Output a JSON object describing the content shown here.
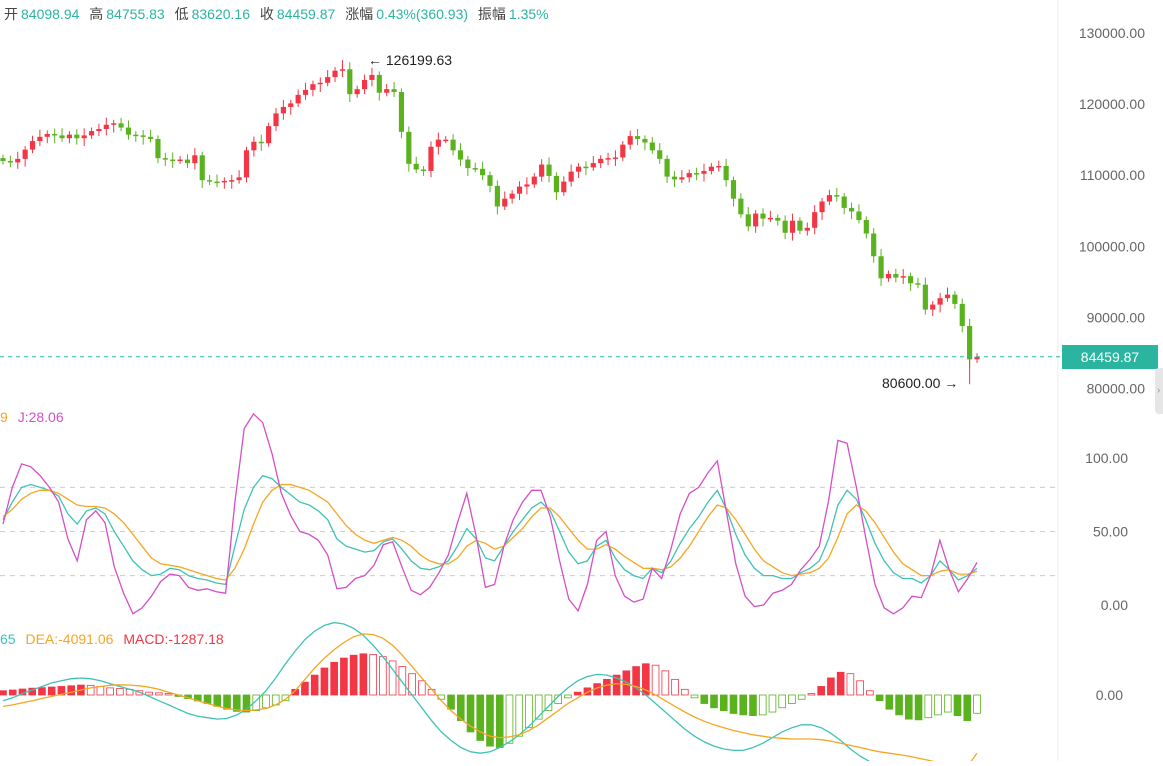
{
  "ohlc_header": {
    "open_label": "开",
    "open": "84098.94",
    "high_label": "高",
    "high": "84755.83",
    "low_label": "低",
    "low": "83620.16",
    "close_label": "收",
    "close": "84459.87",
    "change_label": "涨幅",
    "change": "0.43%(360.93)",
    "amplitude_label": "振幅",
    "amplitude": "1.35%"
  },
  "current_price_tag": "84459.87",
  "annotations": {
    "high_marker": "126199.63",
    "low_marker": "80600.00"
  },
  "kdj_legend": {
    "d_fragment": "9",
    "j_text": "J:28.06"
  },
  "macd_legend": {
    "dif_fragment": "65",
    "dea_text": "DEA:-4091.06",
    "macd_text": "MACD:-1287.18"
  },
  "colors": {
    "up": "#f23645",
    "down": "#5ab21e",
    "k_line": "#3fc2b4",
    "d_line": "#f5a623",
    "j_line": "#d44fc6",
    "price_tag": "#2bb5a0",
    "axis_text": "#666666"
  },
  "chart_data": [
    {
      "type": "candlestick",
      "title": "",
      "ylim": [
        77000,
        133000
      ],
      "y_ticks": [
        "130000.00",
        "120000.00",
        "110000.00",
        "100000.00",
        "90000.00",
        "80000.00"
      ],
      "y_tick_values": [
        130000,
        120000,
        110000,
        100000,
        90000,
        80000
      ],
      "current_price": 84459.87,
      "close_series": [
        112000,
        111800,
        112300,
        113600,
        114800,
        115400,
        115800,
        115600,
        115200,
        115700,
        115200,
        115600,
        116200,
        116500,
        117100,
        117300,
        116700,
        115700,
        115600,
        115400,
        115100,
        112400,
        112200,
        112100,
        112200,
        111700,
        112800,
        109300,
        109100,
        109000,
        109200,
        109300,
        109700,
        113500,
        114700,
        114500,
        116900,
        118700,
        119600,
        120100,
        121300,
        122000,
        122800,
        123000,
        123800,
        124700,
        124900,
        121400,
        122100,
        123400,
        124100,
        121600,
        122100,
        121700,
        116100,
        111600,
        110800,
        110600,
        114000,
        115000,
        115000,
        113500,
        112200,
        111000,
        110900,
        110000,
        108500,
        105600,
        106700,
        107400,
        108400,
        108700,
        109800,
        111500,
        109900,
        107600,
        109100,
        110500,
        111200,
        111100,
        111700,
        112300,
        112400,
        112500,
        114300,
        115500,
        115100,
        114600,
        113500,
        112300,
        109800,
        109400,
        109700,
        110300,
        110200,
        110600,
        111200,
        111300,
        109300,
        106700,
        104500,
        102800,
        104600,
        103900,
        104000,
        103600,
        101900,
        103600,
        102200,
        102600,
        104800,
        106300,
        107200,
        107000,
        105400,
        104900,
        103700,
        101800,
        98600,
        95500,
        96100,
        95600,
        95800,
        94800,
        94600,
        91100,
        91800,
        92700,
        93200,
        91900,
        88800,
        84100,
        84460
      ],
      "high_marker": 126199.63,
      "low_marker": 80600.0
    },
    {
      "type": "line",
      "title": "",
      "ylim": [
        -8,
        128
      ],
      "y_ticks": [
        "100.00",
        "50.00",
        "0.00"
      ],
      "y_tick_values": [
        100,
        50,
        0
      ],
      "dashed_levels": [
        80,
        50,
        20
      ],
      "series": [
        {
          "name": "K",
          "values": [
            58,
            70,
            80,
            82,
            80,
            78,
            74,
            62,
            55,
            64,
            66,
            62,
            50,
            40,
            30,
            24,
            20,
            21,
            25,
            24,
            20,
            18,
            17,
            15,
            14,
            40,
            65,
            80,
            88,
            86,
            80,
            75,
            70,
            68,
            64,
            58,
            45,
            40,
            38,
            36,
            37,
            43,
            45,
            38,
            30,
            25,
            24,
            26,
            30,
            40,
            52,
            45,
            32,
            30,
            40,
            50,
            58,
            66,
            70,
            64,
            50,
            36,
            28,
            30,
            40,
            44,
            32,
            24,
            20,
            18,
            25,
            22,
            30,
            42,
            52,
            60,
            70,
            78,
            65,
            48,
            34,
            25,
            20,
            20,
            18,
            18,
            22,
            25,
            30,
            45,
            68,
            78,
            72,
            58,
            42,
            30,
            22,
            18,
            18,
            15,
            20,
            30,
            24,
            17,
            20,
            25
          ]
        },
        {
          "name": "D",
          "values": [
            60,
            65,
            72,
            76,
            78,
            78,
            76,
            72,
            68,
            67,
            67,
            66,
            62,
            56,
            48,
            40,
            32,
            28,
            27,
            26,
            24,
            22,
            20,
            18,
            17,
            25,
            38,
            55,
            70,
            78,
            82,
            82,
            80,
            78,
            74,
            70,
            62,
            54,
            48,
            44,
            42,
            44,
            46,
            44,
            40,
            34,
            30,
            28,
            28,
            32,
            40,
            44,
            42,
            38,
            40,
            46,
            52,
            60,
            66,
            66,
            60,
            52,
            44,
            38,
            38,
            41,
            38,
            33,
            29,
            25,
            25,
            24,
            26,
            32,
            40,
            50,
            60,
            68,
            66,
            58,
            48,
            38,
            30,
            26,
            22,
            20,
            21,
            22,
            25,
            32,
            46,
            62,
            68,
            64,
            56,
            46,
            36,
            28,
            24,
            20,
            20,
            23,
            24,
            21,
            21,
            23
          ]
        },
        {
          "name": "J",
          "values": [
            55,
            80,
            96,
            94,
            88,
            80,
            70,
            45,
            30,
            58,
            64,
            56,
            26,
            8,
            -6,
            -2,
            6,
            16,
            21,
            20,
            12,
            10,
            11,
            9,
            8,
            70,
            120,
            130,
            124,
            103,
            76,
            61,
            50,
            48,
            44,
            34,
            11,
            12,
            18,
            20,
            27,
            41,
            43,
            26,
            10,
            7,
            12,
            22,
            34,
            56,
            76,
            47,
            12,
            14,
            40,
            58,
            70,
            78,
            78,
            60,
            30,
            4,
            -4,
            14,
            44,
            50,
            20,
            6,
            2,
            4,
            25,
            18,
            38,
            62,
            76,
            80,
            90,
            98,
            63,
            28,
            6,
            -1,
            0,
            8,
            10,
            14,
            24,
            31,
            40,
            71,
            112,
            110,
            80,
            46,
            14,
            -2,
            -6,
            -2,
            6,
            5,
            20,
            44,
            24,
            9,
            18,
            29
          ]
        }
      ]
    },
    {
      "type": "bar",
      "title": "",
      "y_ticks": [
        "0.00"
      ],
      "y_tick_values": [
        0
      ],
      "histogram_values": [
        300,
        350,
        420,
        480,
        520,
        560,
        600,
        650,
        700,
        680,
        600,
        500,
        450,
        400,
        300,
        200,
        150,
        100,
        -100,
        -250,
        -420,
        -600,
        -800,
        -1000,
        -1150,
        -1200,
        -1100,
        -900,
        -700,
        -400,
        400,
        900,
        1400,
        1900,
        2300,
        2600,
        2800,
        2900,
        2850,
        2700,
        2400,
        2000,
        1500,
        1000,
        400,
        -300,
        -1000,
        -1800,
        -2600,
        -3200,
        -3600,
        -3700,
        -3400,
        -2900,
        -2300,
        -1700,
        -1100,
        -600,
        -200,
        200,
        500,
        800,
        1100,
        1400,
        1700,
        2000,
        2200,
        2100,
        1700,
        1100,
        400,
        -200,
        -600,
        -900,
        -1100,
        -1300,
        -1400,
        -1450,
        -1400,
        -1200,
        -900,
        -600,
        -300,
        100,
        600,
        1200,
        1600,
        1500,
        1000,
        300,
        -400,
        -1000,
        -1400,
        -1700,
        -1750,
        -1600,
        -1400,
        -1200,
        -1450,
        -1800,
        -1287
      ],
      "series": [
        {
          "name": "DIF",
          "values": [
            -400,
            -200,
            100,
            350,
            600,
            850,
            1000,
            1150,
            1200,
            1150,
            1000,
            800,
            600,
            400,
            200,
            -100,
            -400,
            -700,
            -1000,
            -1300,
            -1500,
            -1600,
            -1700,
            -1650,
            -1400,
            -1000,
            -400,
            300,
            1200,
            2200,
            3100,
            3900,
            4500,
            4900,
            5100,
            5000,
            4700,
            4200,
            3500,
            2700,
            1800,
            900,
            0,
            -900,
            -1800,
            -2600,
            -3200,
            -3700,
            -4000,
            -4100,
            -4000,
            -3700,
            -3300,
            -2800,
            -2200,
            -1500,
            -800,
            -100,
            500,
            1000,
            1300,
            1450,
            1400,
            1200,
            900,
            500,
            0,
            -600,
            -1200,
            -1800,
            -2400,
            -2900,
            -3300,
            -3600,
            -3800,
            -3900,
            -3900,
            -3700,
            -3400,
            -3000,
            -2600,
            -2300,
            -2100,
            -2100,
            -2300,
            -2700,
            -3200,
            -3800,
            -4300,
            -4700,
            -5000,
            -5300,
            -5500,
            -5700,
            -5900,
            -6100,
            -6300,
            -6600,
            -6900,
            -7100,
            -7300
          ]
        },
        {
          "name": "DEA",
          "values": [
            -800,
            -700,
            -550,
            -400,
            -250,
            -100,
            50,
            200,
            350,
            500,
            600,
            680,
            720,
            700,
            650,
            550,
            400,
            200,
            0,
            -200,
            -400,
            -600,
            -800,
            -950,
            -1050,
            -1100,
            -1050,
            -950,
            -700,
            -300,
            300,
            1100,
            1900,
            2600,
            3200,
            3700,
            4100,
            4300,
            4250,
            4000,
            3500,
            2800,
            2000,
            1200,
            400,
            -400,
            -1100,
            -1700,
            -2200,
            -2600,
            -2900,
            -3000,
            -2950,
            -2800,
            -2500,
            -2100,
            -1600,
            -1100,
            -600,
            -200,
            200,
            500,
            700,
            800,
            750,
            600,
            350,
            0,
            -400,
            -800,
            -1200,
            -1550,
            -1850,
            -2100,
            -2300,
            -2500,
            -2650,
            -2800,
            -2900,
            -3000,
            -3050,
            -3100,
            -3100,
            -3100,
            -3150,
            -3250,
            -3400,
            -3550,
            -3700,
            -3850,
            -4000,
            -4100,
            -4200,
            -4300,
            -4450,
            -4600,
            -4750,
            -4900,
            -5000,
            -5050,
            -4091
          ]
        }
      ]
    }
  ]
}
